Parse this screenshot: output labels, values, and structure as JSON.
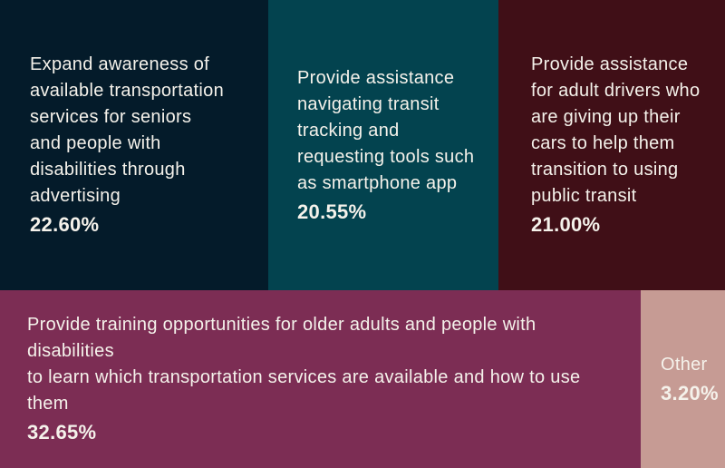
{
  "chart_data": {
    "type": "treemap",
    "title": "",
    "unit": "%",
    "legend": "none",
    "text_color": "#f5f2eb",
    "items": [
      {
        "label": "Expand awareness of available transportation services for seniors and people with disabilities through advertising",
        "lines": [
          "Expand awareness of",
          "available transportation",
          "services for seniors",
          "and people with",
          "disabilities through",
          "advertising"
        ],
        "value": 22.6,
        "display": "22.60%",
        "color": "#041b2a"
      },
      {
        "label": "Provide assistance navigating transit tracking and requesting tools such as smartphone app",
        "lines": [
          "Provide assistance",
          "navigating transit",
          "tracking and",
          "requesting tools such",
          "as smartphone app"
        ],
        "value": 20.55,
        "display": "20.55%",
        "color": "#03434f"
      },
      {
        "label": "Provide assistance for adult drivers who are giving up their cars to help them transition to using public transit",
        "lines": [
          "Provide assistance",
          "for adult drivers who",
          "are giving up their",
          "cars to help them",
          "transition to using",
          "public transit"
        ],
        "value": 21.0,
        "display": "21.00%",
        "color": "#400f17"
      },
      {
        "label": "Provide training opportunities for older adults and people with disabilities to learn which transportation services are available and how to use them",
        "lines": [
          "Provide training opportunities for older adults and people with disabilities",
          "to learn which transportation services are available and how to use them"
        ],
        "value": 32.65,
        "display": "32.65%",
        "color": "#7c2d54"
      },
      {
        "label": "Other",
        "lines": [
          "Other"
        ],
        "value": 3.2,
        "display": "3.20%",
        "color": "#c69b94"
      }
    ]
  }
}
